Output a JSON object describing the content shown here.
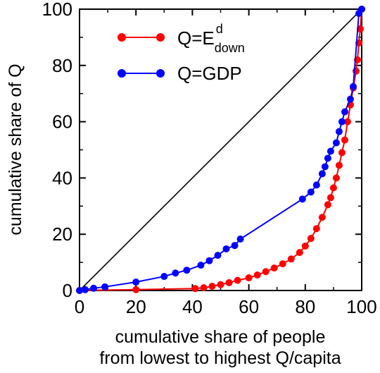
{
  "chart_data": {
    "type": "line",
    "xlabel_line1": "cumulative share of people",
    "xlabel_line2": "from lowest to highest Q/capita",
    "ylabel": "cumulative share of Q",
    "xlim": [
      0,
      100
    ],
    "ylim": [
      0,
      100
    ],
    "x_ticks": [
      "0",
      "20",
      "40",
      "60",
      "80",
      "100"
    ],
    "y_ticks": [
      "0",
      "20",
      "40",
      "60",
      "80",
      "100"
    ],
    "grid": false,
    "legend_position": "top-left",
    "reference_line": {
      "from": [
        0,
        0
      ],
      "to": [
        100,
        100
      ]
    },
    "series": [
      {
        "name": "Q=E^d_down",
        "legend": {
          "base": "Q=E",
          "sup": "d",
          "sub": "down"
        },
        "color": "#ff0000",
        "x": [
          0,
          20,
          41,
          44,
          47,
          50,
          53,
          56,
          60,
          63,
          66,
          69,
          72,
          75,
          78,
          80,
          82,
          84,
          86,
          88,
          89,
          90,
          91,
          92,
          93,
          94,
          95,
          96,
          97,
          98,
          98.5,
          99,
          99.5,
          100
        ],
        "y": [
          0,
          0.3,
          0.7,
          1.0,
          1.5,
          2.1,
          2.8,
          3.6,
          4.5,
          5.5,
          6.7,
          8.0,
          9.5,
          11.2,
          13.5,
          15.8,
          18.5,
          22,
          26,
          30.5,
          33,
          36.5,
          40,
          44.5,
          49,
          53.5,
          60,
          66,
          72,
          78,
          82,
          88,
          93,
          100
        ]
      },
      {
        "name": "Q=GDP",
        "legend": {
          "base": "Q=GDP",
          "sup": "",
          "sub": ""
        },
        "color": "#0000ff",
        "x": [
          0,
          2,
          5,
          9,
          20,
          30,
          34,
          38,
          43,
          46,
          49,
          52,
          55,
          57,
          79,
          82,
          84,
          86,
          87,
          88,
          89,
          91,
          92,
          93,
          94,
          96,
          97,
          99,
          100
        ],
        "y": [
          0,
          0.3,
          0.8,
          1.3,
          3.0,
          5.0,
          6.2,
          7.2,
          9.0,
          10.6,
          12.5,
          14.8,
          16.0,
          18.3,
          32.5,
          35,
          37.5,
          41.5,
          44,
          47,
          49.5,
          52.5,
          56.5,
          60,
          63.5,
          68,
          72.5,
          98.5,
          100
        ]
      }
    ]
  }
}
